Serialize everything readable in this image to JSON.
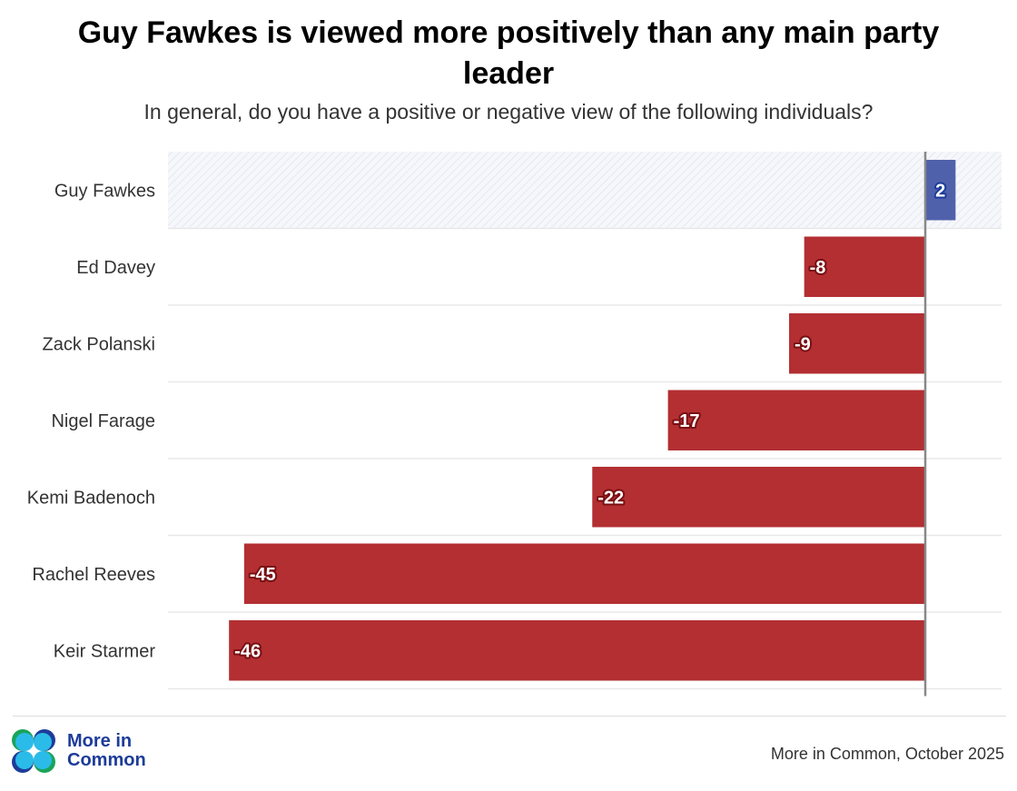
{
  "chart_data": {
    "type": "bar",
    "orientation": "horizontal",
    "title": "Guy Fawkes is viewed more positively than any main party leader",
    "subtitle": "In general, do you have a positive or negative view of the following individuals?",
    "categories": [
      "Guy Fawkes",
      "Ed Davey",
      "Zack Polanski",
      "Nigel Farage",
      "Kemi Badenoch",
      "Rachel Reeves",
      "Keir Starmer"
    ],
    "values": [
      2,
      -8,
      -9,
      -17,
      -22,
      -45,
      -46
    ],
    "xlim": [
      -50,
      5
    ],
    "highlighted_category": "Guy Fawkes",
    "colors": {
      "positive": "#5061ab",
      "negative": "#b32f32",
      "highlight_band": "#eef0f6",
      "zero_line": "#888888"
    },
    "grid": false,
    "data_labels": true
  },
  "footer": {
    "logo_text": [
      "More in",
      "Common"
    ],
    "source": "More in Common, October 2025"
  }
}
